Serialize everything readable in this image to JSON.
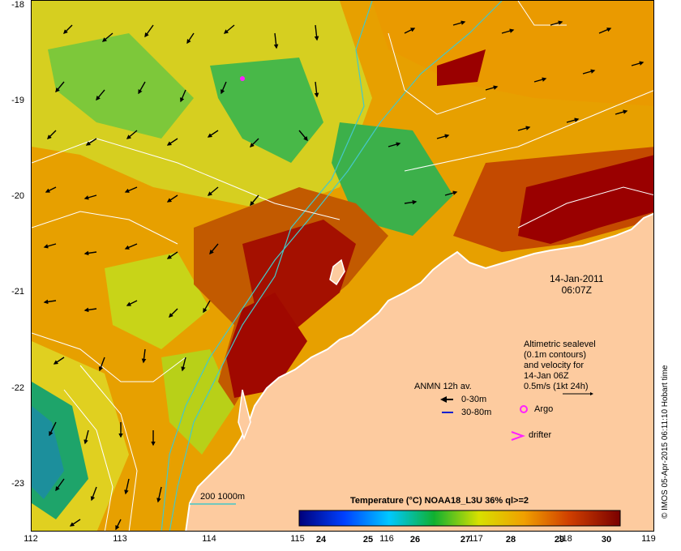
{
  "map": {
    "lat_labels": [
      "-18",
      "-19",
      "-20",
      "-21",
      "-22",
      "-23"
    ],
    "lon_labels": [
      "112",
      "113",
      "114",
      "115",
      "116",
      "117",
      "118",
      "119"
    ],
    "date_label": "14-Jan-2011",
    "time_label": "06:07Z",
    "legend": {
      "altimetric_lines": [
        "Altimetric sealevel",
        "(0.1m contours)",
        "and velocity for",
        "14-Jan 06Z",
        "0.5m/s (1kt 24h)"
      ],
      "anmn_title": "ANMN 12h av.",
      "anmn_shallow": "0-30m",
      "anmn_deep": "30-80m",
      "argo": "Argo",
      "drifter": "drifter",
      "isobath": "200  1000m"
    },
    "colorbar": {
      "title": "Temperature (°C) NOAA18_L3U 36% ql>=2",
      "ticks": [
        "24",
        "25",
        "26",
        "27",
        "28",
        "29",
        "30"
      ]
    },
    "credit": "© IMOS 05-Apr-2015 06:11:10 Hobart time",
    "colors": {
      "land": "#fdcb9f",
      "warm": "#9a0000",
      "mid": "#e08a00",
      "cool": "#30b040",
      "isobath": "#45c8c8",
      "argo": "#ff20ff"
    }
  }
}
